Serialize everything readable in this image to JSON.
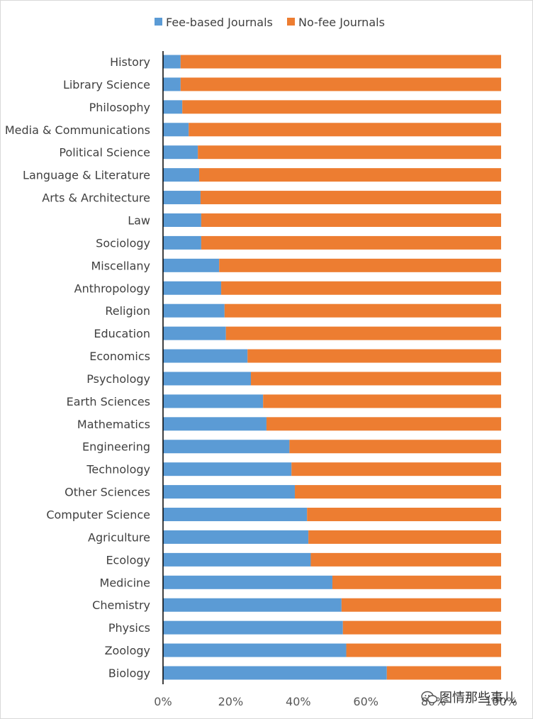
{
  "chart_data": {
    "type": "bar",
    "orientation": "horizontal",
    "stacked": "100%",
    "categories": [
      "History",
      "Library Science",
      "Philosophy",
      "Media & Communications",
      "Political Science",
      "Language & Literature",
      "Arts & Architecture",
      "Law",
      "Sociology",
      "Miscellany",
      "Anthropology",
      "Religion",
      "Education",
      "Economics",
      "Psychology",
      "Earth Sciences",
      "Mathematics",
      "Engineering",
      "Technology",
      "Other Sciences",
      "Computer Science",
      "Agriculture",
      "Ecology",
      "Medicine",
      "Chemistry",
      "Physics",
      "Zoology",
      "Biology"
    ],
    "series": [
      {
        "name": "Fee-based Journals",
        "color": "#5B9BD5",
        "values": [
          5.2,
          5.2,
          5.7,
          7.6,
          10.3,
          10.7,
          11.1,
          11.3,
          11.3,
          16.6,
          17.2,
          18.2,
          18.6,
          25.0,
          26.0,
          29.6,
          30.6,
          37.4,
          38.0,
          39.0,
          42.6,
          43.0,
          43.7,
          50.1,
          52.8,
          53.2,
          54.2,
          66.2
        ]
      },
      {
        "name": "No-fee Journals",
        "color": "#ED7D31",
        "values": [
          94.8,
          94.8,
          94.3,
          92.4,
          89.7,
          89.3,
          88.9,
          88.7,
          88.7,
          83.4,
          82.8,
          81.8,
          81.4,
          75.0,
          74.0,
          70.4,
          69.4,
          62.6,
          62.0,
          61.0,
          57.4,
          57.0,
          56.3,
          49.9,
          47.2,
          46.8,
          45.8,
          33.8
        ]
      }
    ],
    "x_ticks": [
      "0%",
      "20%",
      "40%",
      "60%",
      "80%",
      "100%"
    ],
    "xlim": [
      0,
      100
    ],
    "grid": false,
    "legend_position": "top"
  },
  "watermark": {
    "text": "图情那些事儿",
    "icon": "wechat-icon"
  }
}
